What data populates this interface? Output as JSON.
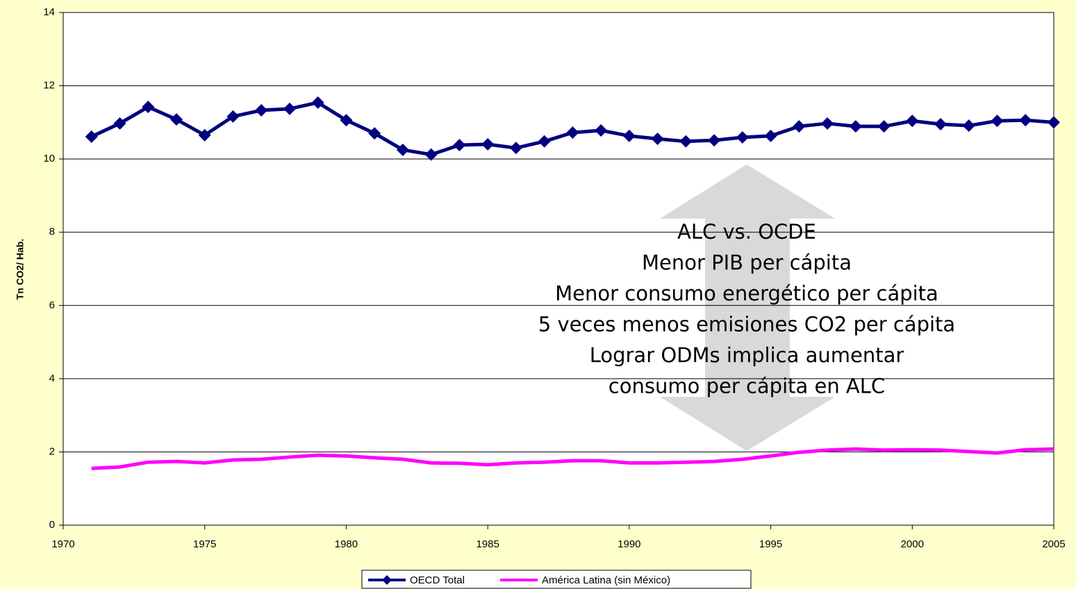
{
  "chart_data": {
    "type": "line",
    "y_label": "Tn CO2/ Hab.",
    "x": [
      1971,
      1972,
      1973,
      1974,
      1975,
      1976,
      1977,
      1978,
      1979,
      1980,
      1981,
      1982,
      1983,
      1984,
      1985,
      1986,
      1987,
      1988,
      1989,
      1990,
      1991,
      1992,
      1993,
      1994,
      1995,
      1996,
      1997,
      1998,
      1999,
      2000,
      2001,
      2002,
      2003,
      2004,
      2005
    ],
    "series": [
      {
        "name": "OECD Total",
        "color": "#000080",
        "marker": "diamond",
        "values": [
          10.61,
          10.97,
          11.42,
          11.08,
          10.65,
          11.16,
          11.33,
          11.37,
          11.54,
          11.06,
          10.7,
          10.25,
          10.12,
          10.38,
          10.4,
          10.3,
          10.48,
          10.72,
          10.78,
          10.63,
          10.55,
          10.48,
          10.51,
          10.59,
          10.63,
          10.89,
          10.97,
          10.89,
          10.89,
          11.04,
          10.95,
          10.91,
          11.04,
          11.06,
          11.0
        ]
      },
      {
        "name": "América Latina (sin México)",
        "color": "#ff00ff",
        "values": [
          1.55,
          1.59,
          1.72,
          1.74,
          1.7,
          1.78,
          1.8,
          1.86,
          1.91,
          1.89,
          1.84,
          1.8,
          1.7,
          1.69,
          1.65,
          1.7,
          1.72,
          1.76,
          1.76,
          1.7,
          1.7,
          1.72,
          1.74,
          1.8,
          1.89,
          1.99,
          2.05,
          2.08,
          2.05,
          2.06,
          2.05,
          2.01,
          1.97,
          2.06,
          2.08
        ]
      }
    ],
    "xlim": [
      1970,
      2005
    ],
    "xticks": [
      1970,
      1975,
      1980,
      1985,
      1990,
      1995,
      2000,
      2005
    ],
    "ylim": [
      0,
      14
    ],
    "yticks": [
      0,
      2,
      4,
      6,
      8,
      10,
      12,
      14
    ],
    "grid": true,
    "legend": "bottom",
    "annotation": [
      "ALC vs. OCDE",
      "Menor PIB per cápita",
      "Menor consumo energético per cápita",
      "5 veces menos emisiones CO2 per cápita",
      "Lograr ODMs implica aumentar",
      "consumo per cápita en ALC"
    ]
  }
}
